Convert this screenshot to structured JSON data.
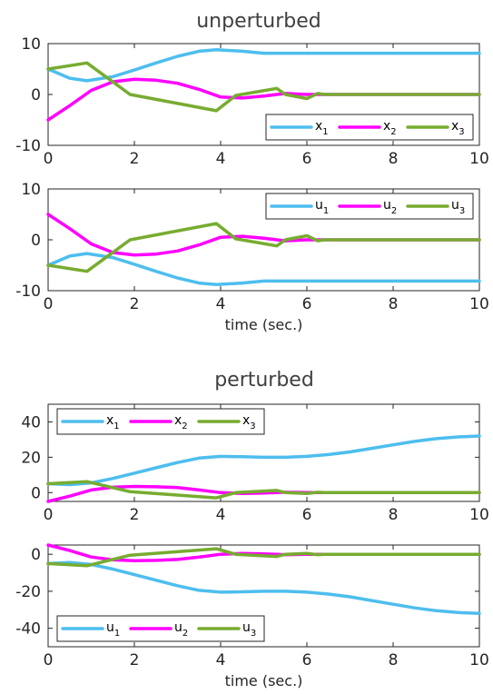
{
  "colors": {
    "c1": "#4DBEEE",
    "c2": "#FF00FF",
    "c3": "#77AC30"
  },
  "sections": [
    {
      "title": "unperturbed",
      "xlabel": "time (sec.)"
    },
    {
      "title": "perturbed",
      "xlabel": "time (sec.)"
    }
  ],
  "chart_data": [
    {
      "type": "line",
      "section_title": "unperturbed",
      "xlim": [
        0,
        10
      ],
      "ylim": [
        -10,
        10
      ],
      "xticks": [
        0,
        2,
        4,
        6,
        8,
        10
      ],
      "yticks": [
        -10,
        0,
        10
      ],
      "xlabel": "",
      "legend": {
        "position": "bottom-right",
        "entries": [
          {
            "main": "x",
            "sub": "1"
          },
          {
            "main": "x",
            "sub": "2"
          },
          {
            "main": "x",
            "sub": "3"
          }
        ]
      },
      "series": [
        {
          "label": "x1",
          "color": "c1",
          "x": [
            0,
            0.5,
            0.9,
            1.5,
            2,
            2.5,
            3,
            3.5,
            3.9,
            4.5,
            5,
            5.5,
            6,
            7,
            8,
            9,
            10
          ],
          "y": [
            5,
            3.2,
            2.7,
            3.5,
            4.8,
            6.2,
            7.5,
            8.5,
            8.8,
            8.5,
            8.1,
            8.1,
            8.1,
            8.1,
            8.1,
            8.1,
            8.1
          ]
        },
        {
          "label": "x2",
          "color": "c2",
          "x": [
            0,
            0.5,
            1,
            1.5,
            2,
            2.5,
            3,
            3.5,
            4,
            4.5,
            5,
            5.5,
            6,
            6.5,
            10
          ],
          "y": [
            -5,
            -2.2,
            0.8,
            2.5,
            3,
            2.8,
            2.2,
            1,
            -0.5,
            -0.7,
            -0.3,
            0.2,
            0,
            0,
            0
          ]
        },
        {
          "label": "x3",
          "color": "c3",
          "x": [
            0,
            0.9,
            1.9,
            3.9,
            4.35,
            5.3,
            5.5,
            6.0,
            6.25,
            6.4,
            10
          ],
          "y": [
            5,
            6.2,
            0,
            -3.2,
            -0.2,
            1.2,
            0,
            -0.8,
            0.2,
            0,
            0
          ]
        }
      ]
    },
    {
      "type": "line",
      "section_title": "unperturbed",
      "xlim": [
        0,
        10
      ],
      "ylim": [
        -10,
        10
      ],
      "xticks": [
        0,
        2,
        4,
        6,
        8,
        10
      ],
      "yticks": [
        -10,
        0,
        10
      ],
      "xlabel": "time (sec.)",
      "legend": {
        "position": "top-right",
        "entries": [
          {
            "main": "u",
            "sub": "1"
          },
          {
            "main": "u",
            "sub": "2"
          },
          {
            "main": "u",
            "sub": "3"
          }
        ]
      },
      "series": [
        {
          "label": "u1",
          "color": "c1",
          "x": [
            0,
            0.5,
            0.9,
            1.5,
            2,
            2.5,
            3,
            3.5,
            3.9,
            4.5,
            5,
            5.5,
            6,
            7,
            8,
            9,
            10
          ],
          "y": [
            -5,
            -3.2,
            -2.7,
            -3.5,
            -4.8,
            -6.2,
            -7.5,
            -8.5,
            -8.8,
            -8.5,
            -8.1,
            -8.1,
            -8.1,
            -8.1,
            -8.1,
            -8.1,
            -8.1
          ]
        },
        {
          "label": "u2",
          "color": "c2",
          "x": [
            0,
            0.5,
            1,
            1.5,
            2,
            2.5,
            3,
            3.5,
            4,
            4.5,
            5,
            5.5,
            6,
            6.5,
            10
          ],
          "y": [
            5,
            2.2,
            -0.8,
            -2.5,
            -3,
            -2.8,
            -2.2,
            -1,
            0.5,
            0.7,
            0.3,
            -0.2,
            0,
            0,
            0
          ]
        },
        {
          "label": "u3",
          "color": "c3",
          "x": [
            0,
            0.9,
            1.9,
            3.9,
            4.35,
            5.3,
            5.5,
            6.0,
            6.25,
            6.4,
            10
          ],
          "y": [
            -5,
            -6.2,
            0,
            3.2,
            0.2,
            -1.2,
            0,
            0.8,
            -0.2,
            0,
            0
          ]
        }
      ]
    },
    {
      "type": "line",
      "section_title": "perturbed",
      "xlim": [
        0,
        10
      ],
      "ylim": [
        -5,
        50
      ],
      "xticks": [
        0,
        2,
        4,
        6,
        8,
        10
      ],
      "yticks": [
        0,
        20,
        40
      ],
      "xlabel": "",
      "legend": {
        "position": "top-left",
        "entries": [
          {
            "main": "x",
            "sub": "1"
          },
          {
            "main": "x",
            "sub": "2"
          },
          {
            "main": "x",
            "sub": "3"
          }
        ]
      },
      "series": [
        {
          "label": "x1",
          "color": "c1",
          "x": [
            0,
            0.5,
            1,
            1.5,
            2,
            2.5,
            3,
            3.5,
            4,
            4.5,
            5,
            5.5,
            6,
            6.5,
            7,
            7.5,
            8,
            8.5,
            9,
            9.5,
            10
          ],
          "y": [
            5,
            4.5,
            5.5,
            8,
            11,
            14,
            17,
            19.5,
            20.5,
            20.3,
            20,
            20,
            20.5,
            21.5,
            23,
            25,
            27,
            29,
            30.5,
            31.5,
            32
          ]
        },
        {
          "label": "x2",
          "color": "c2",
          "x": [
            0,
            0.5,
            1,
            1.5,
            2,
            2.5,
            3,
            3.5,
            4,
            4.5,
            5,
            5.5,
            6,
            10
          ],
          "y": [
            -5,
            -2,
            1.5,
            3,
            3.5,
            3.3,
            2.8,
            1.5,
            0,
            -0.5,
            -0.2,
            0.2,
            0,
            0
          ]
        },
        {
          "label": "x3",
          "color": "c3",
          "x": [
            0,
            0.9,
            1.9,
            3.9,
            4.35,
            5.3,
            5.5,
            6.0,
            6.25,
            6.4,
            10
          ],
          "y": [
            5,
            6.2,
            0.5,
            -3,
            0,
            1.2,
            0,
            -0.5,
            0.2,
            0,
            0
          ]
        }
      ]
    },
    {
      "type": "line",
      "section_title": "perturbed",
      "xlim": [
        0,
        10
      ],
      "ylim": [
        -50,
        5
      ],
      "xticks": [
        0,
        2,
        4,
        6,
        8,
        10
      ],
      "yticks": [
        -40,
        -20,
        0
      ],
      "xlabel": "time (sec.)",
      "legend": {
        "position": "bottom-left",
        "entries": [
          {
            "main": "u",
            "sub": "1"
          },
          {
            "main": "u",
            "sub": "2"
          },
          {
            "main": "u",
            "sub": "3"
          }
        ]
      },
      "series": [
        {
          "label": "u1",
          "color": "c1",
          "x": [
            0,
            0.5,
            1,
            1.5,
            2,
            2.5,
            3,
            3.5,
            4,
            4.5,
            5,
            5.5,
            6,
            6.5,
            7,
            7.5,
            8,
            8.5,
            9,
            9.5,
            10
          ],
          "y": [
            -5,
            -4.5,
            -5.5,
            -8,
            -11,
            -14,
            -17,
            -19.5,
            -20.5,
            -20.3,
            -20,
            -20,
            -20.5,
            -21.5,
            -23,
            -25,
            -27,
            -29,
            -30.5,
            -31.5,
            -32
          ]
        },
        {
          "label": "u2",
          "color": "c2",
          "x": [
            0,
            0.5,
            1,
            1.5,
            2,
            2.5,
            3,
            3.5,
            4,
            4.5,
            5,
            5.5,
            6,
            10
          ],
          "y": [
            5,
            2,
            -1.5,
            -3,
            -3.5,
            -3.3,
            -2.8,
            -1.5,
            0,
            0.5,
            0.2,
            -0.2,
            0,
            0
          ]
        },
        {
          "label": "u3",
          "color": "c3",
          "x": [
            0,
            0.9,
            1.9,
            3.9,
            4.35,
            5.3,
            5.5,
            6.0,
            6.25,
            6.4,
            10
          ],
          "y": [
            -5,
            -6.2,
            -0.5,
            3,
            0,
            -1.2,
            0,
            0.5,
            -0.2,
            0,
            0
          ]
        }
      ]
    }
  ]
}
